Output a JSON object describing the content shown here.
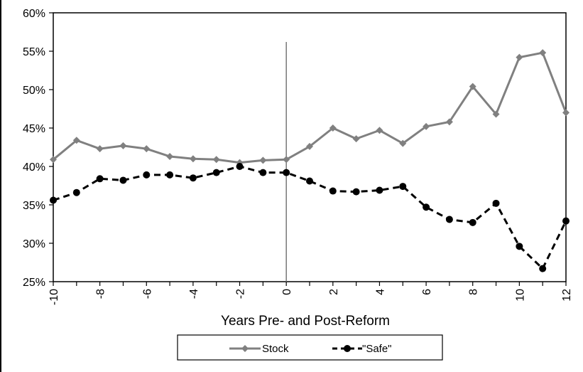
{
  "chart_data": {
    "type": "line",
    "xlabel": "Years Pre- and Post-Reform",
    "ylabel": "",
    "x": [
      -10,
      -9,
      -8,
      -7,
      -6,
      -5,
      -4,
      -3,
      -2,
      -1,
      0,
      1,
      2,
      3,
      4,
      5,
      6,
      7,
      8,
      9,
      10,
      11,
      12
    ],
    "x_tick_labels": [
      "-10",
      "-8",
      "-6",
      "-4",
      "-2",
      "0",
      "2",
      "4",
      "6",
      "8",
      "10",
      "12"
    ],
    "x_tick_values": [
      -10,
      -8,
      -6,
      -4,
      -2,
      0,
      2,
      4,
      6,
      8,
      10,
      12
    ],
    "xlim": [
      -10,
      12
    ],
    "y_tick_labels": [
      "25%",
      "30%",
      "35%",
      "40%",
      "45%",
      "50%",
      "55%",
      "60%"
    ],
    "y_tick_values": [
      25,
      30,
      35,
      40,
      45,
      50,
      55,
      60
    ],
    "ylim": [
      25,
      60
    ],
    "y_unit": "%",
    "grid": false,
    "vertical_reference_line_x": 0,
    "legend_position": "bottom",
    "series": [
      {
        "name": "Stock",
        "color": "#808080",
        "marker": "diamond",
        "line_style": "solid",
        "values": [
          40.9,
          43.4,
          42.3,
          42.7,
          42.3,
          41.3,
          41.0,
          40.9,
          40.5,
          40.8,
          40.9,
          42.6,
          45.0,
          43.6,
          44.7,
          43.0,
          45.2,
          45.8,
          50.4,
          46.8,
          54.2,
          54.8,
          47.0
        ]
      },
      {
        "name": "\"Safe\"",
        "color": "#000000",
        "marker": "circle",
        "line_style": "dashed",
        "values": [
          35.6,
          36.6,
          38.4,
          38.2,
          38.9,
          38.9,
          38.5,
          39.2,
          40.0,
          39.2,
          39.2,
          38.1,
          36.8,
          36.7,
          36.9,
          37.4,
          34.7,
          33.1,
          32.7,
          35.2,
          29.6,
          26.7,
          32.9
        ]
      }
    ]
  }
}
